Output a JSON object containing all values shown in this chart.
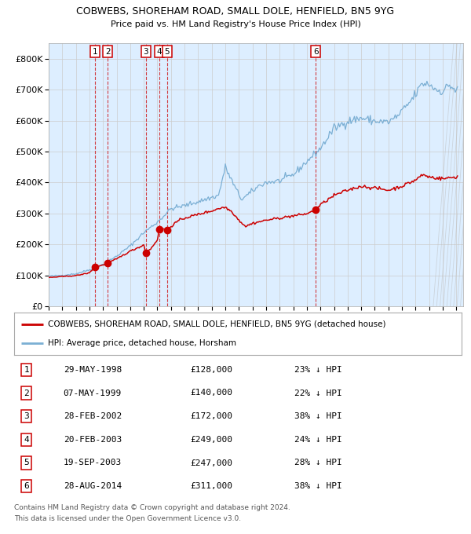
{
  "title1": "COBWEBS, SHOREHAM ROAD, SMALL DOLE, HENFIELD, BN5 9YG",
  "title2": "Price paid vs. HM Land Registry's House Price Index (HPI)",
  "legend_red": "COBWEBS, SHOREHAM ROAD, SMALL DOLE, HENFIELD, BN5 9YG (detached house)",
  "legend_blue": "HPI: Average price, detached house, Horsham",
  "footer1": "Contains HM Land Registry data © Crown copyright and database right 2024.",
  "footer2": "This data is licensed under the Open Government Licence v3.0.",
  "transactions": [
    {
      "num": 1,
      "date": "1998-05-29",
      "price": 128000,
      "pct": "23%",
      "x": 1998.41
    },
    {
      "num": 2,
      "date": "1999-05-07",
      "price": 140000,
      "pct": "22%",
      "x": 1999.35
    },
    {
      "num": 3,
      "date": "2002-02-28",
      "price": 172000,
      "pct": "38%",
      "x": 2002.16
    },
    {
      "num": 4,
      "date": "2003-02-20",
      "price": 249000,
      "pct": "24%",
      "x": 2003.14
    },
    {
      "num": 5,
      "date": "2003-09-19",
      "price": 247000,
      "pct": "28%",
      "x": 2003.72
    },
    {
      "num": 6,
      "date": "2014-08-28",
      "price": 311000,
      "pct": "38%",
      "x": 2014.66
    }
  ],
  "table_rows": [
    {
      "num": 1,
      "date": "29-MAY-1998",
      "price": "£128,000",
      "pct": "23% ↓ HPI"
    },
    {
      "num": 2,
      "date": "07-MAY-1999",
      "price": "£140,000",
      "pct": "22% ↓ HPI"
    },
    {
      "num": 3,
      "date": "28-FEB-2002",
      "price": "£172,000",
      "pct": "38% ↓ HPI"
    },
    {
      "num": 4,
      "date": "20-FEB-2003",
      "price": "£249,000",
      "pct": "24% ↓ HPI"
    },
    {
      "num": 5,
      "date": "19-SEP-2003",
      "price": "£247,000",
      "pct": "28% ↓ HPI"
    },
    {
      "num": 6,
      "date": "28-AUG-2014",
      "price": "£311,000",
      "pct": "38% ↓ HPI"
    }
  ],
  "ylim": [
    0,
    850000
  ],
  "yticks": [
    0,
    100000,
    200000,
    300000,
    400000,
    500000,
    600000,
    700000,
    800000
  ],
  "xlim_start": 1995.0,
  "xlim_end": 2025.5,
  "red_color": "#cc0000",
  "blue_line_color": "#7bafd4",
  "bg_color": "#ddeeff",
  "plot_bg": "#ffffff",
  "grid_color": "#cccccc",
  "vline_color": "#cc0000"
}
